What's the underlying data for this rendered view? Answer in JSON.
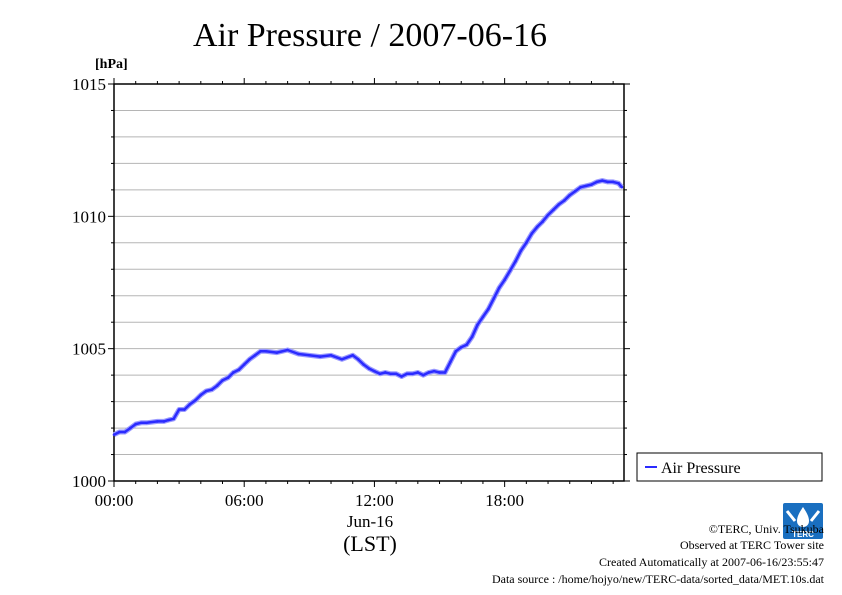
{
  "chart_data": {
    "type": "line",
    "title": "Air Pressure / 2007-06-16",
    "ylabel": "[hPa]",
    "xlabel_date": "Jun-16",
    "xlabel_tz": "(LST)",
    "xlim": [
      0,
      23.5
    ],
    "ylim": [
      1000,
      1015
    ],
    "x_ticks": [
      {
        "value": 0,
        "label": "00:00"
      },
      {
        "value": 6,
        "label": "06:00"
      },
      {
        "value": 12,
        "label": "12:00"
      },
      {
        "value": 18,
        "label": "18:00"
      }
    ],
    "y_ticks": [
      {
        "value": 1000,
        "label": "1000"
      },
      {
        "value": 1005,
        "label": "1005"
      },
      {
        "value": 1010,
        "label": "1010"
      },
      {
        "value": 1015,
        "label": "1015"
      }
    ],
    "grid": true,
    "legend_position": "right",
    "series": [
      {
        "name": "Air Pressure",
        "color": "#2b2bff",
        "x": [
          0.0,
          0.25,
          0.5,
          0.75,
          1.0,
          1.25,
          1.5,
          2.0,
          2.3,
          2.5,
          2.75,
          3.0,
          3.25,
          3.5,
          3.75,
          4.0,
          4.25,
          4.5,
          4.75,
          5.0,
          5.25,
          5.5,
          5.75,
          6.0,
          6.25,
          6.5,
          6.75,
          7.0,
          7.5,
          8.0,
          8.5,
          9.0,
          9.5,
          10.0,
          10.5,
          11.0,
          11.25,
          11.5,
          11.75,
          12.0,
          12.25,
          12.5,
          12.75,
          13.0,
          13.25,
          13.5,
          13.75,
          14.0,
          14.25,
          14.5,
          14.75,
          15.0,
          15.25,
          15.5,
          15.75,
          16.0,
          16.25,
          16.5,
          16.75,
          17.0,
          17.25,
          17.5,
          17.75,
          18.0,
          18.25,
          18.5,
          18.75,
          19.0,
          19.25,
          19.5,
          19.75,
          20.0,
          20.25,
          20.5,
          20.75,
          21.0,
          21.25,
          21.5,
          21.75,
          22.0,
          22.25,
          22.5,
          22.75,
          23.0,
          23.25,
          23.4
        ],
        "values": [
          1001.75,
          1001.85,
          1001.85,
          1002.0,
          1002.15,
          1002.2,
          1002.2,
          1002.25,
          1002.25,
          1002.3,
          1002.35,
          1002.7,
          1002.7,
          1002.9,
          1003.05,
          1003.25,
          1003.4,
          1003.45,
          1003.6,
          1003.8,
          1003.9,
          1004.1,
          1004.2,
          1004.4,
          1004.6,
          1004.75,
          1004.9,
          1004.9,
          1004.85,
          1004.95,
          1004.8,
          1004.75,
          1004.7,
          1004.75,
          1004.6,
          1004.75,
          1004.6,
          1004.4,
          1004.25,
          1004.15,
          1004.05,
          1004.1,
          1004.05,
          1004.05,
          1003.95,
          1004.05,
          1004.05,
          1004.1,
          1004.0,
          1004.1,
          1004.15,
          1004.1,
          1004.1,
          1004.5,
          1004.9,
          1005.05,
          1005.15,
          1005.45,
          1005.9,
          1006.2,
          1006.5,
          1006.9,
          1007.3,
          1007.6,
          1007.95,
          1008.3,
          1008.7,
          1009.0,
          1009.35,
          1009.6,
          1009.8,
          1010.05,
          1010.25,
          1010.45,
          1010.6,
          1010.8,
          1010.95,
          1011.1,
          1011.15,
          1011.2,
          1011.3,
          1011.35,
          1011.3,
          1011.3,
          1011.25,
          1011.1
        ]
      }
    ]
  },
  "footer": {
    "line1": "©TERC, Univ. Tsukuba",
    "line2": "Observed at TERC Tower site",
    "line3": "Created Automatically at 2007-06-16/23:55:47",
    "line4": "Data source : /home/hojyo/new/TERC-data/sorted_data/MET.10s.dat"
  },
  "logo": {
    "text": "TERC",
    "color": "#1a6fc0"
  }
}
